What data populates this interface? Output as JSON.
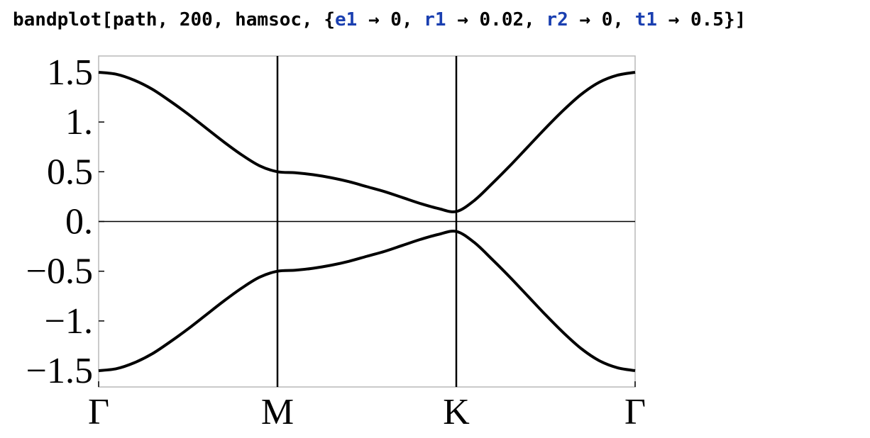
{
  "command": {
    "func": "bandplot",
    "open": "[",
    "args": [
      "path",
      "200",
      "hamsoc"
    ],
    "sep": ", ",
    "list_open": "{",
    "list_close": "}",
    "close": "]",
    "arrow": " → ",
    "rules": [
      {
        "name": "e1",
        "value": "0"
      },
      {
        "name": "r1",
        "value": "0.02"
      },
      {
        "name": "r2",
        "value": "0"
      },
      {
        "name": "t1",
        "value": "0.5"
      }
    ]
  },
  "colors": {
    "symbol": "#1a3fb0",
    "line": "#000000",
    "frame": "#b8b8b8"
  },
  "chart_data": {
    "type": "line",
    "xlim": [
      0,
      3
    ],
    "ylim": [
      -1.5,
      1.5
    ],
    "grid": false,
    "x_ticks": [
      {
        "x": 0,
        "label": "Γ"
      },
      {
        "x": 1,
        "label": "M"
      },
      {
        "x": 2,
        "label": "K"
      },
      {
        "x": 3,
        "label": "Γ"
      }
    ],
    "y_ticks": [
      {
        "y": 1.5,
        "label": "1.5"
      },
      {
        "y": 1.0,
        "label": "1."
      },
      {
        "y": 0.5,
        "label": "0.5"
      },
      {
        "y": 0.0,
        "label": "0."
      },
      {
        "y": -0.5,
        "label": "−0.5"
      },
      {
        "y": -1.0,
        "label": "−1."
      },
      {
        "y": -1.5,
        "label": "−1.5"
      }
    ],
    "vertical_lines": [
      1,
      2
    ],
    "horizontal_lines": [
      0
    ],
    "series": [
      {
        "x": [
          0,
          0.1,
          0.2,
          0.3,
          0.4,
          0.5,
          0.6,
          0.7,
          0.8,
          0.9,
          1.0,
          1.1,
          1.2,
          1.3,
          1.4,
          1.5,
          1.6,
          1.7,
          1.8,
          1.9,
          2.0,
          2.1,
          2.2,
          2.3,
          2.4,
          2.5,
          2.6,
          2.7,
          2.8,
          2.9,
          3.0
        ],
        "y": [
          1.5,
          1.48,
          1.42,
          1.33,
          1.21,
          1.08,
          0.94,
          0.8,
          0.67,
          0.56,
          0.5,
          0.49,
          0.47,
          0.44,
          0.4,
          0.35,
          0.3,
          0.24,
          0.18,
          0.13,
          0.1,
          0.21,
          0.38,
          0.56,
          0.75,
          0.94,
          1.12,
          1.28,
          1.4,
          1.47,
          1.5
        ]
      },
      {
        "x": [
          0,
          0.1,
          0.2,
          0.3,
          0.4,
          0.5,
          0.6,
          0.7,
          0.8,
          0.9,
          1.0,
          1.1,
          1.2,
          1.3,
          1.4,
          1.5,
          1.6,
          1.7,
          1.8,
          1.9,
          2.0,
          2.1,
          2.2,
          2.3,
          2.4,
          2.5,
          2.6,
          2.7,
          2.8,
          2.9,
          3.0
        ],
        "y": [
          -1.5,
          -1.48,
          -1.42,
          -1.33,
          -1.21,
          -1.08,
          -0.94,
          -0.8,
          -0.67,
          -0.56,
          -0.5,
          -0.49,
          -0.47,
          -0.44,
          -0.4,
          -0.35,
          -0.3,
          -0.24,
          -0.18,
          -0.13,
          -0.1,
          -0.21,
          -0.38,
          -0.56,
          -0.75,
          -0.94,
          -1.12,
          -1.28,
          -1.4,
          -1.47,
          -1.5
        ]
      }
    ]
  }
}
